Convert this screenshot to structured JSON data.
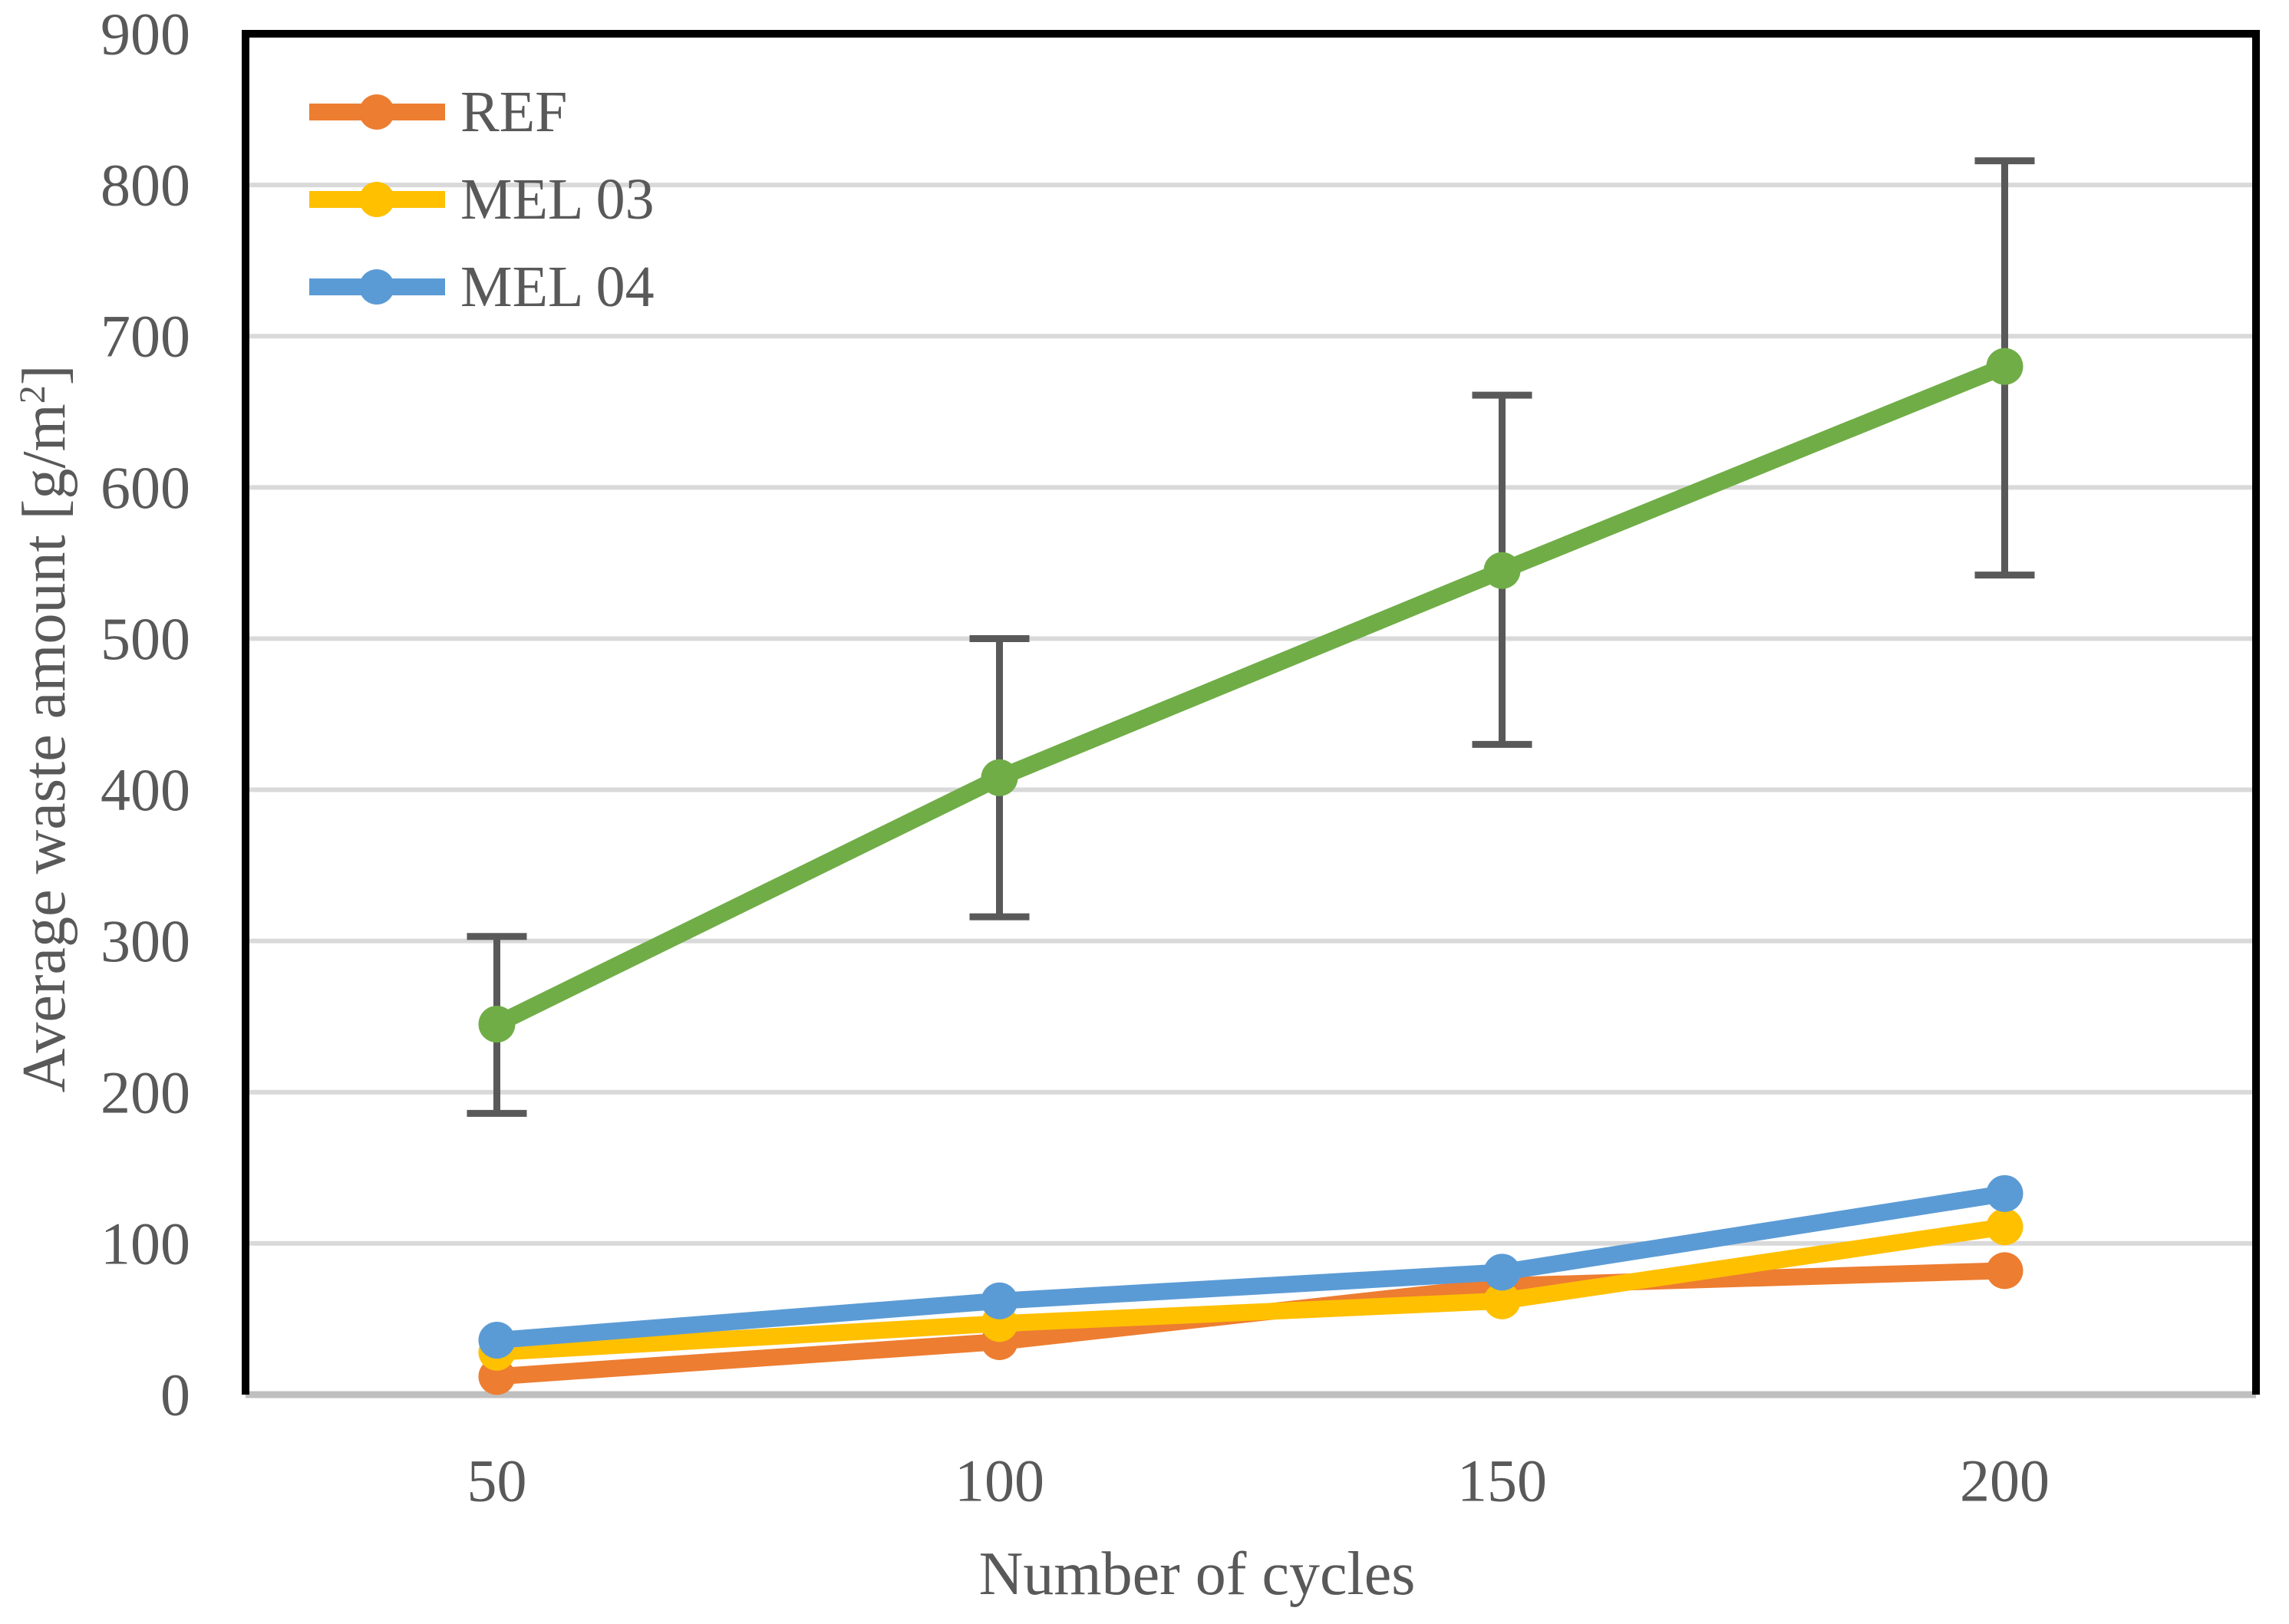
{
  "figure": {
    "x_axis_title": "Number of cycles",
    "y_axis_title": {
      "main": "Average waste amount [g/m",
      "sup": "2",
      "close": "]"
    }
  },
  "legend": {
    "position": "top-left-inside",
    "items": [
      {
        "label": "REF",
        "color": "#ED7D31"
      },
      {
        "label": "MEL 03",
        "color": "#FFC000"
      },
      {
        "label": "MEL 04",
        "color": "#5B9BD5"
      }
    ]
  },
  "chart_data": {
    "type": "line",
    "title": "",
    "xlabel": "Number of cycles",
    "ylabel": "Average waste amount [g/m²]",
    "x": [
      50,
      100,
      150,
      200
    ],
    "xticks": [
      50,
      100,
      150,
      200
    ],
    "yticks": [
      0,
      100,
      200,
      300,
      400,
      500,
      600,
      700,
      800,
      900
    ],
    "xlim": [
      25,
      225
    ],
    "ylim": [
      0,
      900
    ],
    "grid": "horizontal",
    "legend_position": "top-left-inside",
    "series": [
      {
        "name": "REF",
        "color": "#ED7D31",
        "values": [
          12,
          35,
          72,
          82
        ],
        "in_legend": true
      },
      {
        "name": "MEL 03",
        "color": "#FFC000",
        "values": [
          28,
          47,
          62,
          111
        ],
        "in_legend": true
      },
      {
        "name": "MEL 04",
        "color": "#5B9BD5",
        "values": [
          36,
          62,
          81,
          133
        ],
        "in_legend": true
      },
      {
        "name": "",
        "color": "#70AD47",
        "values": [
          245,
          408,
          545,
          680
        ],
        "error_plus": [
          58,
          92,
          116,
          136
        ],
        "error_minus": [
          59,
          92,
          115,
          138
        ],
        "in_legend": false,
        "note": "unlabeled green series with error bars"
      }
    ],
    "style": {
      "gridline_color": "#D9D9D9",
      "axis_line_color": "#BFBFBF",
      "border_color": "#000000",
      "errorbar_color": "#595959",
      "text_color": "#595959",
      "background": "#FFFFFF"
    }
  }
}
